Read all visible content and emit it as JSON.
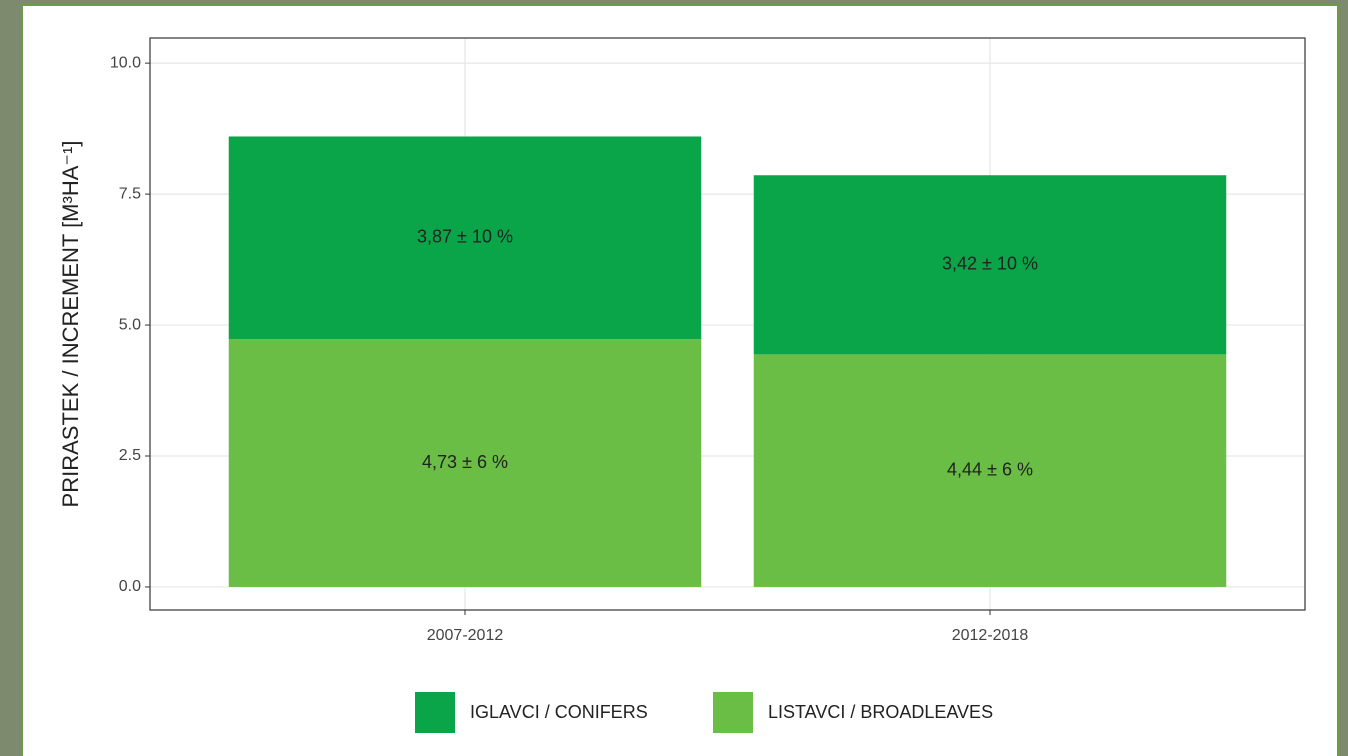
{
  "chart_data": {
    "type": "stacked_bar",
    "y_label": "PRIRASTEK / INCREMENT [M³HA⁻¹]",
    "categories": [
      "2007-2012",
      "2012-2018"
    ],
    "series": [
      {
        "name": "LISTAVCI / BROADLEAVES",
        "color": "#6abd45",
        "values": [
          4.73,
          4.44
        ],
        "value_labels": [
          "4,73 ± 6 %",
          "4,44 ± 6 %"
        ]
      },
      {
        "name": "IGLAVCI / CONIFERS",
        "color": "#0aa548",
        "values": [
          3.87,
          3.42
        ],
        "value_labels": [
          "3,87 ± 10 %",
          "3,42 ± 10 %"
        ]
      }
    ],
    "legend_order": [
      1,
      0
    ],
    "ylim": [
      -0.44,
      10.48
    ],
    "yticks": [
      {
        "value": 0,
        "label": "0.0"
      },
      2.5,
      {
        "value": 5,
        "label": "5.0"
      },
      7.5,
      {
        "value": 10,
        "label": "10.0"
      }
    ],
    "grid": true,
    "legend": "bottom"
  }
}
